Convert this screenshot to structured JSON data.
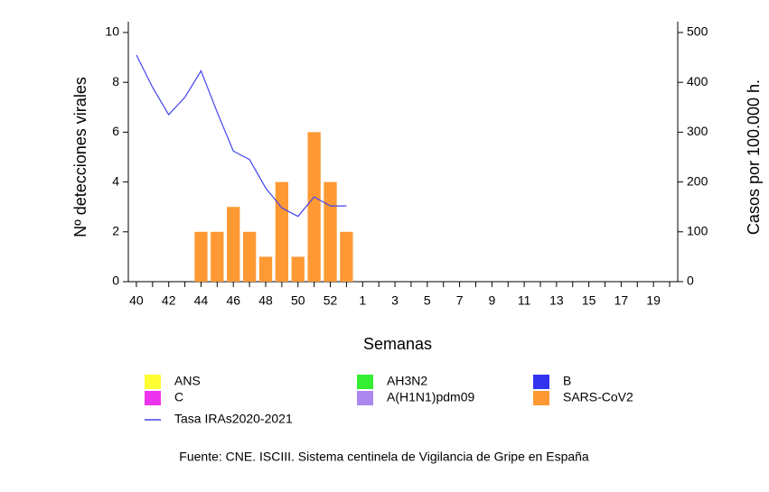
{
  "chart_data": {
    "type": "bar",
    "xlabel": "Semanas",
    "ylabel": "Nº detecciones virales",
    "y2label": "Casos por 100.000 h.",
    "source": "Fuente: CNE. ISCIII. Sistema centinela de Vigilancia de Gripe en España",
    "categories": [
      "40",
      null,
      "42",
      null,
      "44",
      null,
      "46",
      null,
      "48",
      null,
      "50",
      null,
      "52",
      null,
      "1",
      null,
      "3",
      null,
      "5",
      null,
      "7",
      null,
      "9",
      null,
      "11",
      null,
      "13",
      null,
      "15",
      null,
      "17",
      null,
      "19",
      null
    ],
    "ylim": [
      0,
      10
    ],
    "yticks": [
      0,
      2,
      4,
      6,
      8,
      10
    ],
    "y2lim": [
      0,
      500
    ],
    "y2ticks": [
      0,
      100,
      200,
      300,
      400,
      500
    ],
    "series": [
      {
        "name": "ANS",
        "color": "#ffff33",
        "type": "bar",
        "values": [
          null,
          null,
          null,
          null,
          null,
          null,
          null,
          null,
          null,
          null,
          null,
          null,
          null,
          null,
          null,
          null,
          null,
          null,
          null,
          null,
          null,
          null,
          null,
          null,
          null,
          null,
          null,
          null,
          null,
          null,
          null,
          null,
          null,
          null
        ]
      },
      {
        "name": "AH3N2",
        "color": "#33ee33",
        "type": "bar",
        "values": [
          null,
          null,
          null,
          null,
          null,
          null,
          null,
          null,
          null,
          null,
          null,
          null,
          null,
          null,
          null,
          null,
          null,
          null,
          null,
          null,
          null,
          null,
          null,
          null,
          null,
          null,
          null,
          null,
          null,
          null,
          null,
          null,
          null,
          null
        ]
      },
      {
        "name": "B",
        "color": "#3333ee",
        "type": "bar",
        "values": [
          null,
          null,
          null,
          null,
          null,
          null,
          null,
          null,
          null,
          null,
          null,
          null,
          null,
          null,
          null,
          null,
          null,
          null,
          null,
          null,
          null,
          null,
          null,
          null,
          null,
          null,
          null,
          null,
          null,
          null,
          null,
          null,
          null,
          null
        ]
      },
      {
        "name": "C",
        "color": "#ee33ee",
        "type": "bar",
        "values": [
          null,
          null,
          null,
          null,
          null,
          null,
          null,
          null,
          null,
          null,
          null,
          null,
          null,
          null,
          null,
          null,
          null,
          null,
          null,
          null,
          null,
          null,
          null,
          null,
          null,
          null,
          null,
          null,
          null,
          null,
          null,
          null,
          null,
          null
        ]
      },
      {
        "name": "A(H1N1)pdm09",
        "color": "#aa88ee",
        "type": "bar",
        "values": [
          null,
          null,
          null,
          null,
          null,
          null,
          null,
          null,
          null,
          null,
          null,
          null,
          null,
          null,
          null,
          null,
          null,
          null,
          null,
          null,
          null,
          null,
          null,
          null,
          null,
          null,
          null,
          null,
          null,
          null,
          null,
          null,
          null,
          null
        ]
      },
      {
        "name": "SARS-CoV2",
        "color": "#ff9933",
        "type": "bar",
        "values": [
          null,
          null,
          null,
          null,
          2,
          2,
          3,
          2,
          1,
          4,
          1,
          6,
          4,
          2,
          null,
          null,
          null,
          null,
          null,
          null,
          null,
          null,
          null,
          null,
          null,
          null,
          null,
          null,
          null,
          null,
          null,
          null,
          null,
          null
        ]
      },
      {
        "name": "Tasa IRAs2020-2021",
        "color": "#4444ee",
        "type": "line",
        "axis": "y2",
        "values": [
          455,
          390,
          335,
          370,
          423,
          340,
          262,
          245,
          188,
          148,
          131,
          170,
          152,
          152,
          null,
          null,
          null,
          null,
          null,
          null,
          null,
          null,
          null,
          null,
          null,
          null,
          null,
          null,
          null,
          null,
          null,
          null,
          null,
          null
        ]
      }
    ]
  }
}
